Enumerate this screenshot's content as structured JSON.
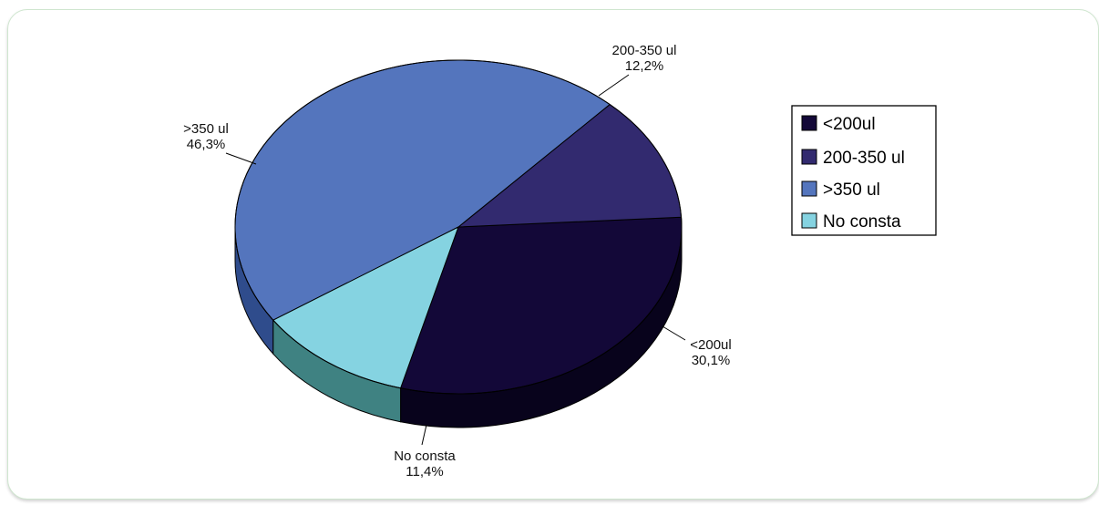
{
  "chart_data": {
    "type": "pie",
    "title": "",
    "slices": [
      {
        "label": "<200ul",
        "value": 30.1,
        "value_text": "30,1%",
        "color": "#130838",
        "side_color": "#08031c"
      },
      {
        "label": "200-350 ul",
        "value": 12.2,
        "value_text": "12,2%",
        "color": "#322a6f",
        "side_color": "#1e1848"
      },
      {
        "label": ">350 ul",
        "value": 46.3,
        "value_text": "46,3%",
        "color": "#5475bd",
        "side_color": "#2f4c8c"
      },
      {
        "label": "No consta",
        "value": 11.4,
        "value_text": "11,4%",
        "color": "#85d3e1",
        "side_color": "#3f8282"
      }
    ],
    "legend": {
      "placement": "right",
      "items": [
        "<200ul",
        "200-350 ul",
        ">350 ul",
        "No consta"
      ]
    }
  }
}
